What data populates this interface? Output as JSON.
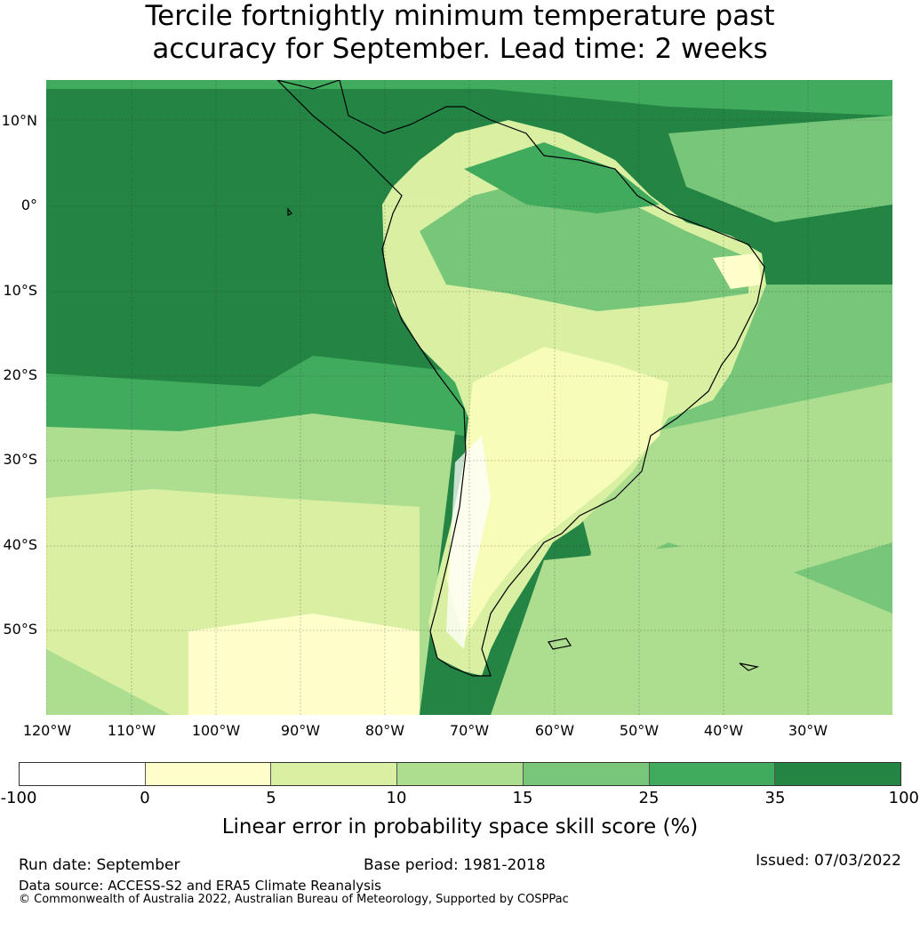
{
  "title": {
    "line1": "Tercile fortnightly minimum temperature past",
    "line2": "accuracy for September. Lead time: 2 weeks"
  },
  "map": {
    "lat_labels": [
      "10°N",
      "0°",
      "10°S",
      "20°S",
      "30°S",
      "40°S",
      "50°S"
    ],
    "lon_labels": [
      "120°W",
      "110°W",
      "100°W",
      "90°W",
      "80°W",
      "70°W",
      "60°W",
      "50°W",
      "40°W",
      "30°W"
    ],
    "ocean_color": "#238443",
    "land_color": "#f7fcb9"
  },
  "colorbar": {
    "ticks": [
      "-100",
      "0",
      "5",
      "10",
      "15",
      "25",
      "35",
      "100"
    ],
    "colors": [
      "#ffffff",
      "#ffffcc",
      "#d9f0a3",
      "#addd8e",
      "#78c679",
      "#41ab5d",
      "#238443"
    ],
    "label": "Linear error in probability space skill score (%)"
  },
  "footer": {
    "run_date": "Run date: September",
    "base_period": "Base period: 1981-2018",
    "issued": "Issued: 07/03/2022",
    "data_source": "Data source: ACCESS-S2 and ERA5 Climate Reanalysis",
    "copyright": "© Commonwealth of Australia 2022, Australian Bureau of Meteorology, Supported by COSPPac"
  }
}
